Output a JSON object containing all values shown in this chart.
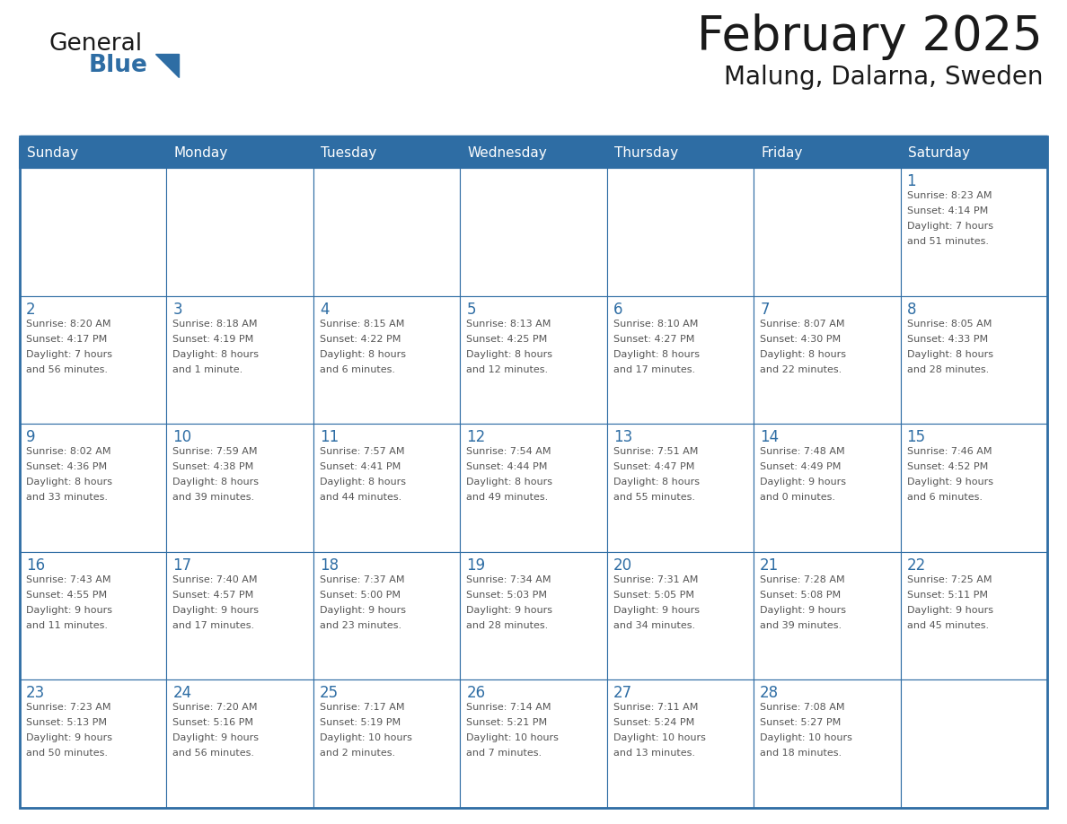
{
  "title": "February 2025",
  "subtitle": "Malung, Dalarna, Sweden",
  "days_of_week": [
    "Sunday",
    "Monday",
    "Tuesday",
    "Wednesday",
    "Thursday",
    "Friday",
    "Saturday"
  ],
  "header_bg": "#2e6da4",
  "header_text": "#ffffff",
  "cell_bg_white": "#ffffff",
  "cell_bg_light": "#f0f4f8",
  "line_color": "#2e6da4",
  "day_number_color": "#2e6da4",
  "info_color": "#555555",
  "title_color": "#1a1a1a",
  "logo_general_color": "#1a1a1a",
  "logo_blue_color": "#2e6da4",
  "weeks": [
    [
      {
        "day": null,
        "info": ""
      },
      {
        "day": null,
        "info": ""
      },
      {
        "day": null,
        "info": ""
      },
      {
        "day": null,
        "info": ""
      },
      {
        "day": null,
        "info": ""
      },
      {
        "day": null,
        "info": ""
      },
      {
        "day": 1,
        "info": "Sunrise: 8:23 AM\nSunset: 4:14 PM\nDaylight: 7 hours\nand 51 minutes."
      }
    ],
    [
      {
        "day": 2,
        "info": "Sunrise: 8:20 AM\nSunset: 4:17 PM\nDaylight: 7 hours\nand 56 minutes."
      },
      {
        "day": 3,
        "info": "Sunrise: 8:18 AM\nSunset: 4:19 PM\nDaylight: 8 hours\nand 1 minute."
      },
      {
        "day": 4,
        "info": "Sunrise: 8:15 AM\nSunset: 4:22 PM\nDaylight: 8 hours\nand 6 minutes."
      },
      {
        "day": 5,
        "info": "Sunrise: 8:13 AM\nSunset: 4:25 PM\nDaylight: 8 hours\nand 12 minutes."
      },
      {
        "day": 6,
        "info": "Sunrise: 8:10 AM\nSunset: 4:27 PM\nDaylight: 8 hours\nand 17 minutes."
      },
      {
        "day": 7,
        "info": "Sunrise: 8:07 AM\nSunset: 4:30 PM\nDaylight: 8 hours\nand 22 minutes."
      },
      {
        "day": 8,
        "info": "Sunrise: 8:05 AM\nSunset: 4:33 PM\nDaylight: 8 hours\nand 28 minutes."
      }
    ],
    [
      {
        "day": 9,
        "info": "Sunrise: 8:02 AM\nSunset: 4:36 PM\nDaylight: 8 hours\nand 33 minutes."
      },
      {
        "day": 10,
        "info": "Sunrise: 7:59 AM\nSunset: 4:38 PM\nDaylight: 8 hours\nand 39 minutes."
      },
      {
        "day": 11,
        "info": "Sunrise: 7:57 AM\nSunset: 4:41 PM\nDaylight: 8 hours\nand 44 minutes."
      },
      {
        "day": 12,
        "info": "Sunrise: 7:54 AM\nSunset: 4:44 PM\nDaylight: 8 hours\nand 49 minutes."
      },
      {
        "day": 13,
        "info": "Sunrise: 7:51 AM\nSunset: 4:47 PM\nDaylight: 8 hours\nand 55 minutes."
      },
      {
        "day": 14,
        "info": "Sunrise: 7:48 AM\nSunset: 4:49 PM\nDaylight: 9 hours\nand 0 minutes."
      },
      {
        "day": 15,
        "info": "Sunrise: 7:46 AM\nSunset: 4:52 PM\nDaylight: 9 hours\nand 6 minutes."
      }
    ],
    [
      {
        "day": 16,
        "info": "Sunrise: 7:43 AM\nSunset: 4:55 PM\nDaylight: 9 hours\nand 11 minutes."
      },
      {
        "day": 17,
        "info": "Sunrise: 7:40 AM\nSunset: 4:57 PM\nDaylight: 9 hours\nand 17 minutes."
      },
      {
        "day": 18,
        "info": "Sunrise: 7:37 AM\nSunset: 5:00 PM\nDaylight: 9 hours\nand 23 minutes."
      },
      {
        "day": 19,
        "info": "Sunrise: 7:34 AM\nSunset: 5:03 PM\nDaylight: 9 hours\nand 28 minutes."
      },
      {
        "day": 20,
        "info": "Sunrise: 7:31 AM\nSunset: 5:05 PM\nDaylight: 9 hours\nand 34 minutes."
      },
      {
        "day": 21,
        "info": "Sunrise: 7:28 AM\nSunset: 5:08 PM\nDaylight: 9 hours\nand 39 minutes."
      },
      {
        "day": 22,
        "info": "Sunrise: 7:25 AM\nSunset: 5:11 PM\nDaylight: 9 hours\nand 45 minutes."
      }
    ],
    [
      {
        "day": 23,
        "info": "Sunrise: 7:23 AM\nSunset: 5:13 PM\nDaylight: 9 hours\nand 50 minutes."
      },
      {
        "day": 24,
        "info": "Sunrise: 7:20 AM\nSunset: 5:16 PM\nDaylight: 9 hours\nand 56 minutes."
      },
      {
        "day": 25,
        "info": "Sunrise: 7:17 AM\nSunset: 5:19 PM\nDaylight: 10 hours\nand 2 minutes."
      },
      {
        "day": 26,
        "info": "Sunrise: 7:14 AM\nSunset: 5:21 PM\nDaylight: 10 hours\nand 7 minutes."
      },
      {
        "day": 27,
        "info": "Sunrise: 7:11 AM\nSunset: 5:24 PM\nDaylight: 10 hours\nand 13 minutes."
      },
      {
        "day": 28,
        "info": "Sunrise: 7:08 AM\nSunset: 5:27 PM\nDaylight: 10 hours\nand 18 minutes."
      },
      {
        "day": null,
        "info": ""
      }
    ]
  ]
}
